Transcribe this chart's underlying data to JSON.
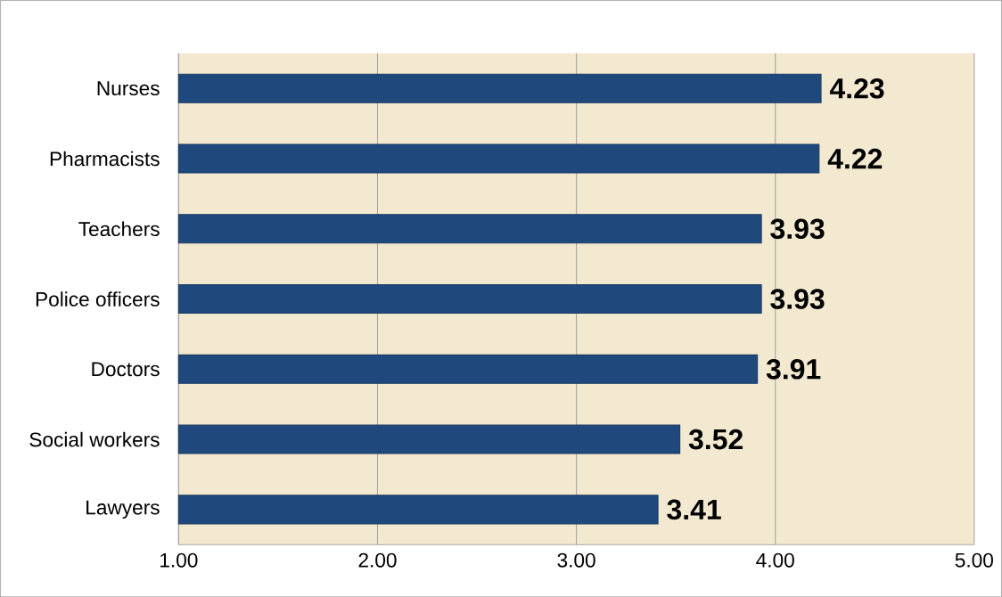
{
  "chart_data": {
    "type": "bar",
    "orientation": "horizontal",
    "categories": [
      "Nurses",
      "Pharmacists",
      "Teachers",
      "Police officers",
      "Doctors",
      "Social workers",
      "Lawyers"
    ],
    "values": [
      4.23,
      4.22,
      3.93,
      3.93,
      3.91,
      3.52,
      3.41
    ],
    "color": "#1f497d",
    "xlim": [
      1,
      5
    ],
    "xticks": [
      {
        "value": 1,
        "label": "1.00"
      },
      {
        "value": 2,
        "label": "2.00"
      },
      {
        "value": 3,
        "label": "3.00"
      },
      {
        "value": 4,
        "label": "4.00"
      },
      {
        "value": 5,
        "label": "5.00"
      }
    ],
    "grid": "x",
    "data_labels": true
  }
}
